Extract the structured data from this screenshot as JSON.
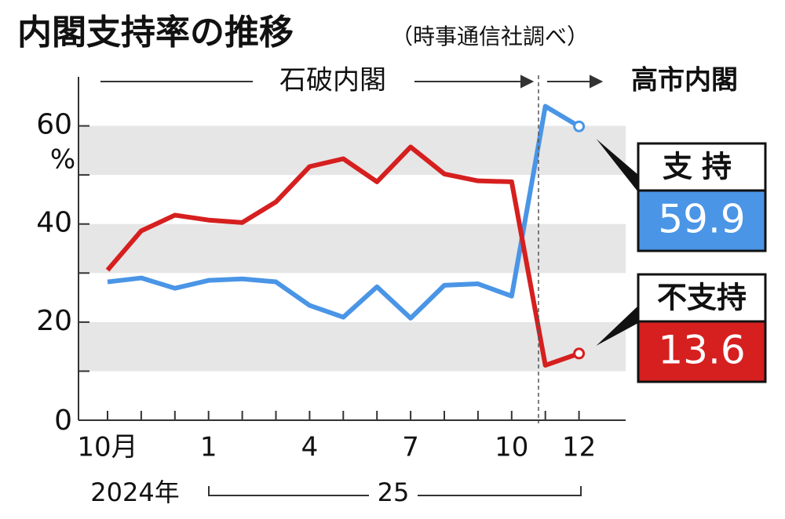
{
  "chart_data": {
    "type": "line",
    "title": "内閣支持率の推移",
    "subtitle": "（時事通信社調べ）",
    "y_unit": "%",
    "categories": [
      "10月",
      null,
      null,
      "1",
      null,
      null,
      "4",
      null,
      null,
      "7",
      null,
      null,
      "10",
      null,
      "12"
    ],
    "year_labels": [
      "2024年",
      "25"
    ],
    "annotations": [
      "石破内閣",
      "高市内閣"
    ],
    "series": [
      {
        "name": "支持",
        "color": "#4a95e6",
        "values": [
          28.2,
          29.0,
          26.9,
          28.5,
          28.8,
          28.2,
          23.4,
          21.0,
          27.2,
          20.8,
          27.5,
          27.8,
          25.3,
          64.0,
          59.9
        ]
      },
      {
        "name": "不支持",
        "color": "#d61f1f",
        "values": [
          30.6,
          38.6,
          41.8,
          40.8,
          40.3,
          44.5,
          51.7,
          53.3,
          48.6,
          55.7,
          50.2,
          48.8,
          48.6,
          11.2,
          13.6
        ]
      }
    ],
    "ylim": [
      0,
      70
    ],
    "yticks": [
      0,
      20,
      40,
      60
    ],
    "minor_yticks": [
      10,
      30,
      50
    ],
    "bands": true
  }
}
